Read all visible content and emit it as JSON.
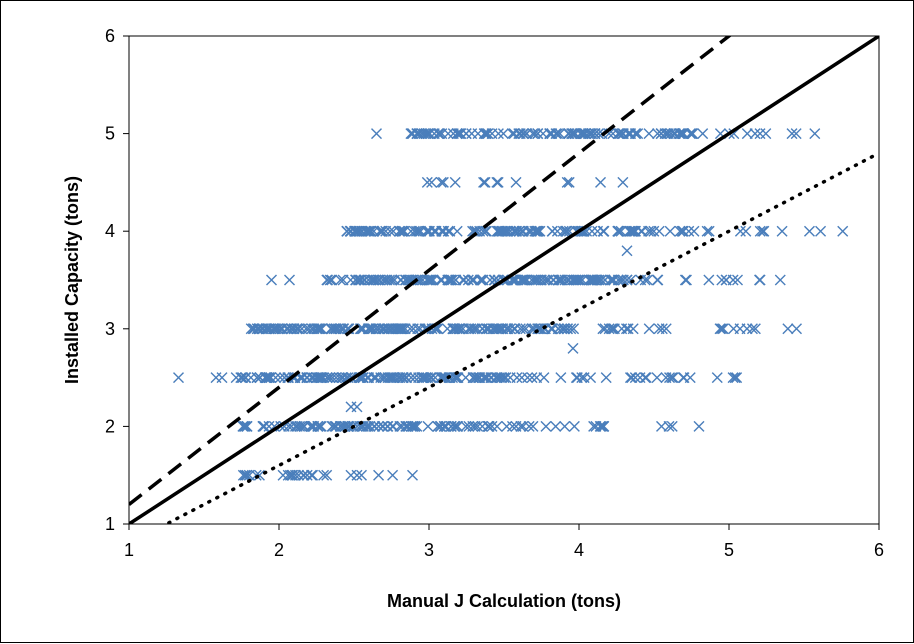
{
  "chart_data": {
    "type": "scatter",
    "title": "",
    "xlabel": "Manual J Calculation (tons)",
    "ylabel": "Installed Capacity (tons)",
    "xlim": [
      1,
      6
    ],
    "ylim": [
      1,
      6
    ],
    "x_ticks": [
      "1",
      "2",
      "3",
      "4",
      "5",
      "6"
    ],
    "y_ticks": [
      "1",
      "2",
      "3",
      "4",
      "5",
      "6"
    ],
    "grid": false,
    "legend": "none",
    "marker": "x",
    "marker_color": "#4a7ebb",
    "line_color": "#000000",
    "lines": [
      {
        "style": "solid",
        "slope": 1.0,
        "intercept": 0.0
      },
      {
        "style": "dashed",
        "slope": 1.2,
        "intercept": 0.0
      },
      {
        "style": "dotted",
        "slope": 0.8,
        "intercept": 0.0
      }
    ],
    "bands": [
      {
        "y": 1.5,
        "xmin": 1.65,
        "xmax": 2.3,
        "sparse_to": 2.9,
        "density": 0.5
      },
      {
        "y": 2.0,
        "xmin": 1.75,
        "xmax": 3.4,
        "sparse_to": 4.8,
        "density": 1.0
      },
      {
        "y": 2.5,
        "xmin": 1.7,
        "xmax": 3.5,
        "sparse_to": 5.1,
        "density": 1.4
      },
      {
        "y": 3.0,
        "xmin": 1.8,
        "xmax": 3.9,
        "sparse_to": 5.45,
        "density": 1.3
      },
      {
        "y": 3.5,
        "xmin": 2.3,
        "xmax": 4.3,
        "sparse_to": 5.4,
        "density": 1.2
      },
      {
        "y": 4.0,
        "xmin": 2.45,
        "xmax": 4.6,
        "sparse_to": 5.8,
        "density": 1.1
      },
      {
        "y": 4.5,
        "xmin": 2.9,
        "xmax": 3.5,
        "sparse_to": 4.35,
        "density": 0.25
      },
      {
        "y": 5.0,
        "xmin": 2.85,
        "xmax": 4.75,
        "sparse_to": 5.7,
        "density": 1.0
      }
    ],
    "extra_points": [
      {
        "x": 1.33,
        "y": 2.5
      },
      {
        "x": 1.58,
        "y": 2.5
      },
      {
        "x": 1.62,
        "y": 2.5
      },
      {
        "x": 1.95,
        "y": 3.5
      },
      {
        "x": 2.07,
        "y": 3.5
      },
      {
        "x": 2.65,
        "y": 5.0
      },
      {
        "x": 2.52,
        "y": 2.2
      },
      {
        "x": 2.48,
        "y": 2.2
      },
      {
        "x": 2.52,
        "y": 1.5
      },
      {
        "x": 2.55,
        "y": 1.5
      },
      {
        "x": 2.89,
        "y": 1.5
      },
      {
        "x": 3.4,
        "y": 2.0
      },
      {
        "x": 3.42,
        "y": 2.0
      },
      {
        "x": 3.58,
        "y": 2.0
      },
      {
        "x": 3.96,
        "y": 2.8
      },
      {
        "x": 4.32,
        "y": 3.8
      },
      {
        "x": 4.55,
        "y": 2.0
      },
      {
        "x": 4.6,
        "y": 2.0
      },
      {
        "x": 4.8,
        "y": 2.0
      },
      {
        "x": 4.52,
        "y": 2.5
      },
      {
        "x": 4.58,
        "y": 2.5
      },
      {
        "x": 4.7,
        "y": 2.5
      },
      {
        "x": 5.45,
        "y": 3.0
      },
      {
        "x": 4.98,
        "y": 3.5
      },
      {
        "x": 5.42,
        "y": 5.0
      },
      {
        "x": 4.95,
        "y": 3.0
      },
      {
        "x": 5.03,
        "y": 3.0
      },
      {
        "x": 5.12,
        "y": 3.0
      }
    ]
  }
}
